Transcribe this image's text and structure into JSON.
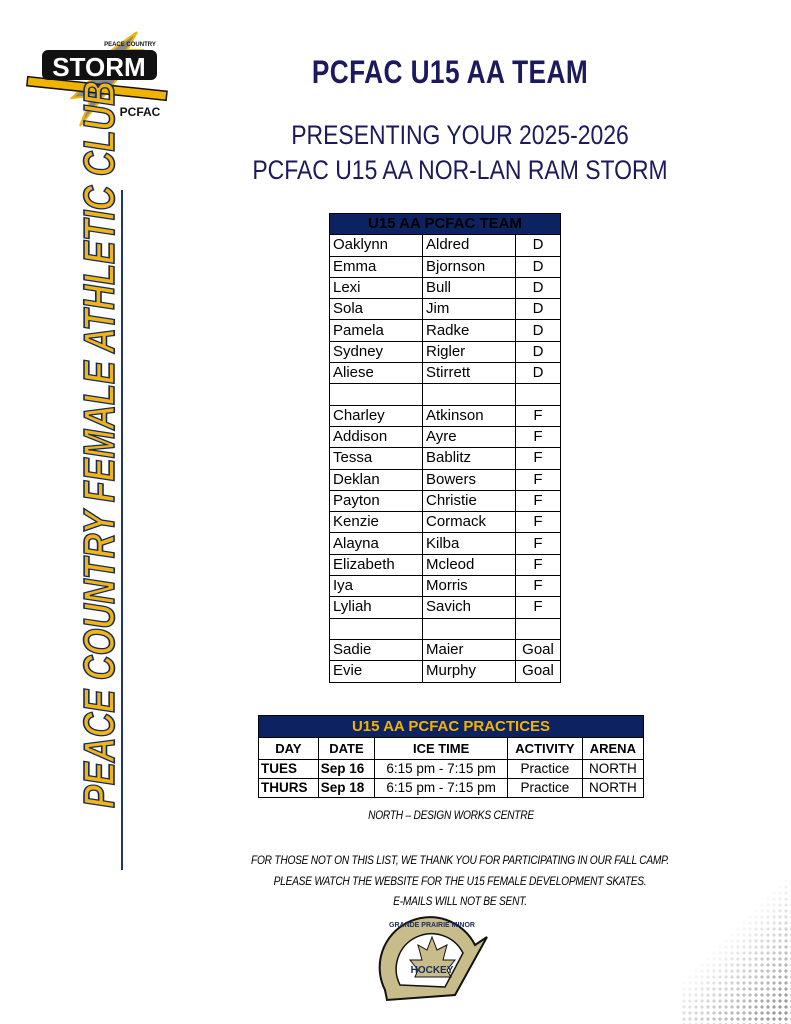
{
  "logo_top": {
    "text": "STORM",
    "top_text": "PEACE COUNTRY",
    "bottom_text": "PCFAC"
  },
  "title": "PCFAC U15 AA TEAM",
  "subtitle_line1": "PRESENTING YOUR 2025-2026",
  "subtitle_line2": "PCFAC U15 AA NOR-LAN RAM STORM",
  "side_banner": "PEACE COUNTRY FEMALE ATHLETIC CLUB",
  "colors": {
    "navy": "#0d2260",
    "gold": "#f0b400"
  },
  "roster": {
    "header": "U15 AA PCFAC TEAM",
    "rows": [
      [
        "Oaklynn",
        "Aldred",
        "D"
      ],
      [
        "Emma",
        "Bjornson",
        "D"
      ],
      [
        "Lexi",
        "Bull",
        "D"
      ],
      [
        "Sola",
        "Jim",
        "D"
      ],
      [
        "Pamela",
        "Radke",
        "D"
      ],
      [
        "Sydney",
        "Rigler",
        "D"
      ],
      [
        "Aliese",
        "Stirrett",
        "D"
      ],
      [
        "",
        "",
        ""
      ],
      [
        "Charley",
        "Atkinson",
        "F"
      ],
      [
        "Addison",
        "Ayre",
        "F"
      ],
      [
        "Tessa",
        "Bablitz",
        "F"
      ],
      [
        "Deklan",
        "Bowers",
        "F"
      ],
      [
        "Payton",
        "Christie",
        "F"
      ],
      [
        "Kenzie",
        "Cormack",
        "F"
      ],
      [
        "Alayna",
        "Kilba",
        "F"
      ],
      [
        "Elizabeth",
        "Mcleod",
        "F"
      ],
      [
        "Iya",
        "Morris",
        "F"
      ],
      [
        "Lyliah",
        "Savich",
        "F"
      ],
      [
        "",
        "",
        ""
      ],
      [
        "Sadie",
        "Maier",
        "Goal"
      ],
      [
        "Evie",
        "Murphy",
        "Goal"
      ]
    ]
  },
  "practices": {
    "header": "U15 AA PCFAC PRACTICES",
    "columns": [
      "DAY",
      "DATE",
      "ICE TIME",
      "ACTIVITY",
      "ARENA"
    ],
    "rows": [
      [
        "TUES",
        "Sep 16",
        "6:15 pm - 7:15 pm",
        "Practice",
        "NORTH"
      ],
      [
        "THURS",
        "Sep 18",
        "6:15 pm - 7:15 pm",
        "Practice",
        "NORTH"
      ]
    ],
    "note": "NORTH – DESIGN WORKS CENTRE"
  },
  "footer_lines": [
    "FOR THOSE NOT ON THIS LIST, WE THANK YOU FOR PARTICIPATING IN OUR FALL CAMP.",
    "PLEASE WATCH THE WEBSITE FOR THE U15 FEMALE DEVELOPMENT SKATES.",
    "E-MAILS WILL NOT BE SENT."
  ],
  "logo_bottom": {
    "arc_text": "GRANDE PRAIRIE MINOR",
    "center_text": "HOCKEY"
  }
}
